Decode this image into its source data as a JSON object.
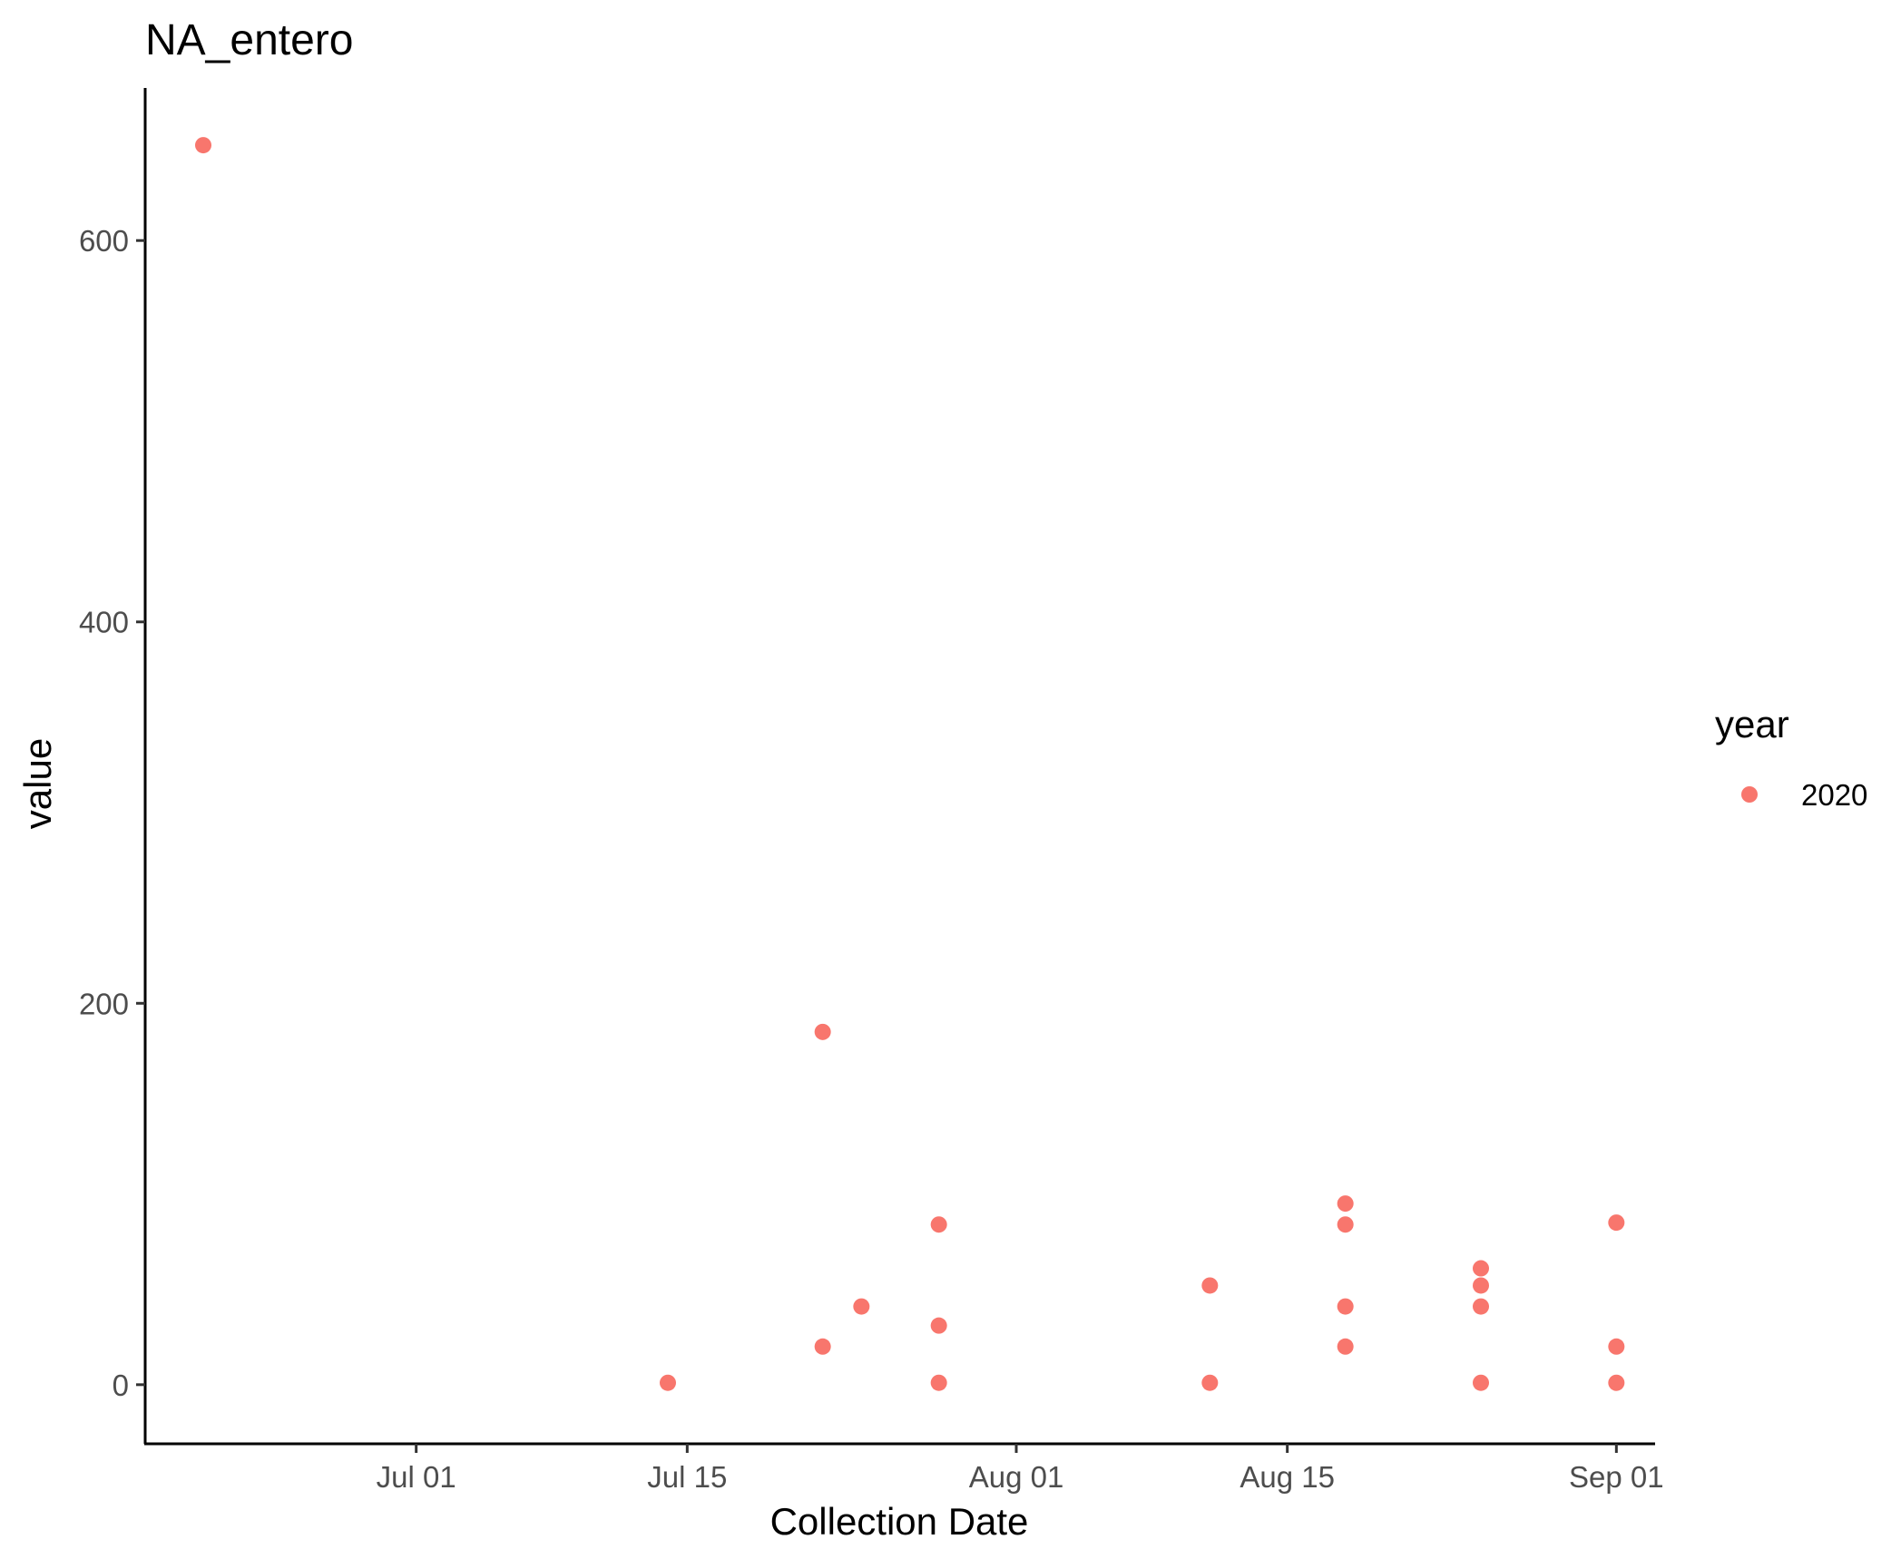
{
  "chart_data": {
    "type": "scatter",
    "title": "NA_entero",
    "xlabel": "Collection Date",
    "ylabel": "value",
    "x_scale": "date",
    "xlim": [
      "2020-06-17",
      "2020-09-03"
    ],
    "ylim": [
      -31,
      680
    ],
    "x_ticks": [
      {
        "date": "2020-07-01",
        "label": "Jul 01"
      },
      {
        "date": "2020-07-15",
        "label": "Jul 15"
      },
      {
        "date": "2020-08-01",
        "label": "Aug 01"
      },
      {
        "date": "2020-08-15",
        "label": "Aug 15"
      },
      {
        "date": "2020-09-01",
        "label": "Sep 01"
      }
    ],
    "y_ticks": [
      0,
      200,
      400,
      600
    ],
    "grid": false,
    "legend": {
      "title": "year",
      "position": "right",
      "entries": [
        {
          "label": "2020",
          "color": "#F8766D"
        }
      ]
    },
    "series": [
      {
        "name": "2020",
        "color": "#F8766D",
        "points": [
          {
            "x": "2020-06-20",
            "y": 650
          },
          {
            "x": "2020-07-14",
            "y": 1
          },
          {
            "x": "2020-07-22",
            "y": 185
          },
          {
            "x": "2020-07-22",
            "y": 20
          },
          {
            "x": "2020-07-24",
            "y": 41
          },
          {
            "x": "2020-07-28",
            "y": 84
          },
          {
            "x": "2020-07-28",
            "y": 31
          },
          {
            "x": "2020-07-28",
            "y": 1
          },
          {
            "x": "2020-08-11",
            "y": 52
          },
          {
            "x": "2020-08-11",
            "y": 1
          },
          {
            "x": "2020-08-18",
            "y": 95
          },
          {
            "x": "2020-08-18",
            "y": 84
          },
          {
            "x": "2020-08-18",
            "y": 41
          },
          {
            "x": "2020-08-18",
            "y": 20
          },
          {
            "x": "2020-08-25",
            "y": 61
          },
          {
            "x": "2020-08-25",
            "y": 52
          },
          {
            "x": "2020-08-25",
            "y": 41
          },
          {
            "x": "2020-08-25",
            "y": 1
          },
          {
            "x": "2020-09-01",
            "y": 85
          },
          {
            "x": "2020-09-01",
            "y": 20
          },
          {
            "x": "2020-09-01",
            "y": 1
          }
        ]
      }
    ]
  }
}
